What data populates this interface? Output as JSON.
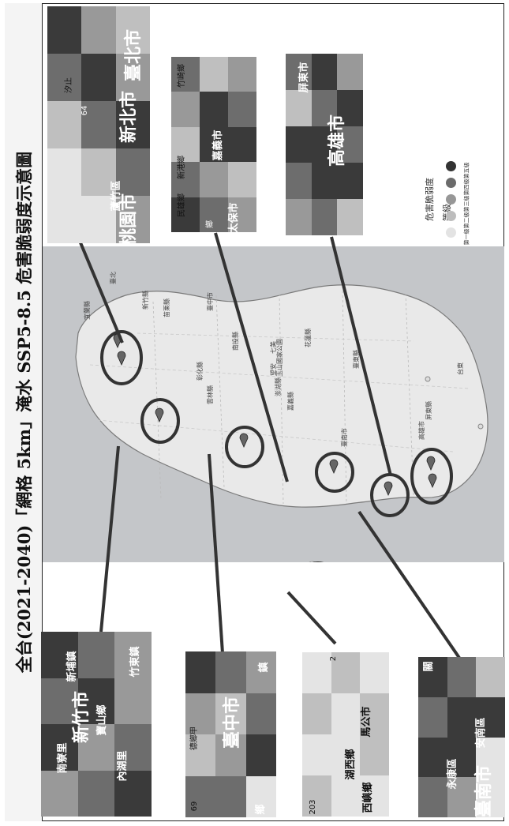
{
  "title": "全台(2021-2040)「網格 5km」淹水 SSP5-8.5 危害脆弱度示意圖",
  "legend": {
    "title": "危害脆弱度",
    "subtitle": "等級",
    "levels": [
      {
        "label": "第一級",
        "color": "#e3e3e3"
      },
      {
        "label": "第二級",
        "color": "#bdbdbd"
      },
      {
        "label": "第三級",
        "color": "#979797"
      },
      {
        "label": "第四級",
        "color": "#6b6b6b"
      },
      {
        "label": "第五級",
        "color": "#333333"
      }
    ]
  },
  "map_labels": [
    "臺北",
    "宜蘭縣",
    "新竹縣",
    "苗栗縣",
    "臺中市",
    "花蓮縣",
    "南投縣",
    "彰化縣",
    "雲林縣",
    "嘉義縣",
    "玉山國家公園",
    "臺東縣",
    "屏東縣",
    "高雄市",
    "臺南市",
    "澎湖縣",
    "望安",
    "七美",
    "台東"
  ],
  "insets": [
    {
      "name": "north",
      "labels": [
        "蘆竹區",
        "桃園市",
        "新北市",
        "臺北市",
        "汐止",
        "64"
      ]
    },
    {
      "name": "chiayi",
      "labels": [
        "民雄鄉",
        "竹崎鄉",
        "嘉義市",
        "新港鄉",
        "太保市",
        "鄉"
      ]
    },
    {
      "name": "kaohsiung",
      "labels": [
        "屏東市",
        "高雄市"
      ]
    },
    {
      "name": "hsinchu",
      "labels": [
        "南寮里",
        "新竹市",
        "新埔鎮",
        "寶山鄉",
        "竹東鎮",
        "內湖里"
      ]
    },
    {
      "name": "taichung",
      "labels": [
        "臺中市",
        "德鄉甲",
        "鄉",
        "鎮",
        "69"
      ]
    },
    {
      "name": "penghu",
      "labels": [
        "湖西鄉",
        "馬公市",
        "西嶼鄉",
        "203",
        "2"
      ]
    },
    {
      "name": "tainan",
      "labels": [
        "永康區",
        "安南區",
        "臺南市",
        "關"
      ]
    }
  ]
}
